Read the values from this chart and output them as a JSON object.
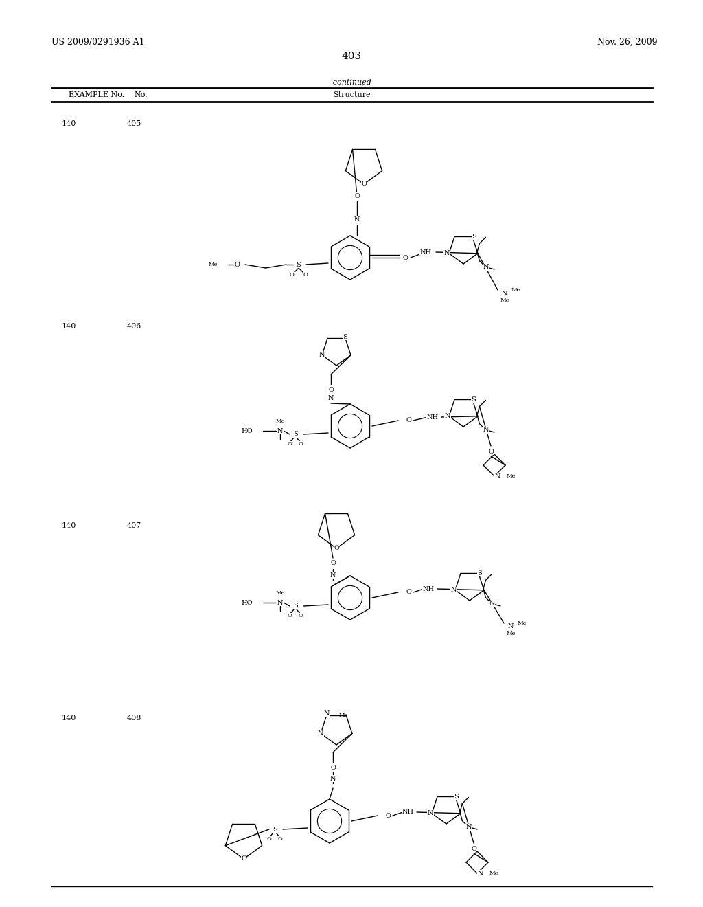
{
  "page_number": "403",
  "patent_number": "US 2009/0291936 A1",
  "patent_date": "Nov. 26, 2009",
  "table_header": "-continued",
  "col1": "EXAMPLE No.",
  "col2": "No.",
  "col3": "Structure",
  "rows": [
    {
      "example": "140",
      "no": "405"
    },
    {
      "example": "140",
      "no": "406"
    },
    {
      "example": "140",
      "no": "407"
    },
    {
      "example": "140",
      "no": "408"
    }
  ],
  "background_color": "#ffffff",
  "text_color": "#000000",
  "line_color": "#000000",
  "font_size_header": 9,
  "font_size_body": 8,
  "font_size_page": 9,
  "font_size_pagenum": 11
}
